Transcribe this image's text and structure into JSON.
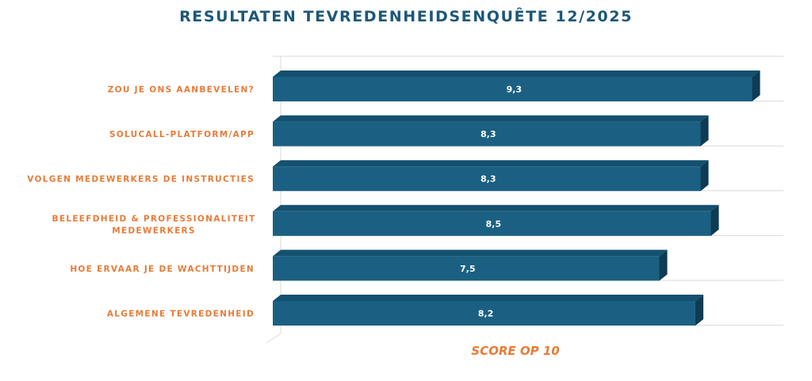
{
  "chart_data": {
    "type": "bar",
    "orientation": "horizontal",
    "title": "RESULTATEN TEVREDENHEIDSENQUÊTE 12/2025",
    "xlabel": "SCORE OP 10",
    "categories": [
      "ZOU JE ONS AANBEVELEN?",
      "SOLUCALL-PLATFORM/APP",
      "VOLGEN MEDEWERKERS DE INSTRUCTIES",
      "BELEEFDHEID & PROFESSIONALITEIT MEDEWERKERS",
      "HOE ERVAAR JE DE WACHTTIJDEN",
      "ALGEMENE TEVREDENHEID"
    ],
    "category_lines": [
      [
        "ZOU JE ONS AANBEVELEN?"
      ],
      [
        "SOLUCALL-PLATFORM/APP"
      ],
      [
        "VOLGEN MEDEWERKERS DE INSTRUCTIES"
      ],
      [
        "BELEEFDHEID & PROFESSIONALITEIT",
        "MEDEWERKERS"
      ],
      [
        "HOE ERVAAR JE DE WACHTTIJDEN"
      ],
      [
        "ALGEMENE TEVREDENHEID"
      ]
    ],
    "values": [
      9.3,
      8.3,
      8.3,
      8.5,
      7.5,
      8.2
    ],
    "value_labels": [
      "9,3",
      "8,3",
      "8,3",
      "8,5",
      "7,5",
      "8,2"
    ],
    "xlim": [
      0,
      10
    ],
    "grid": true,
    "legend": "none",
    "style": "3d",
    "colors": {
      "bar_front": "#1b6083",
      "bar_top": "#14506f",
      "bar_side": "#0d3c54",
      "category_text": "#e87b37",
      "title_text": "#1d5878",
      "grid": "#d9d9d9"
    }
  }
}
